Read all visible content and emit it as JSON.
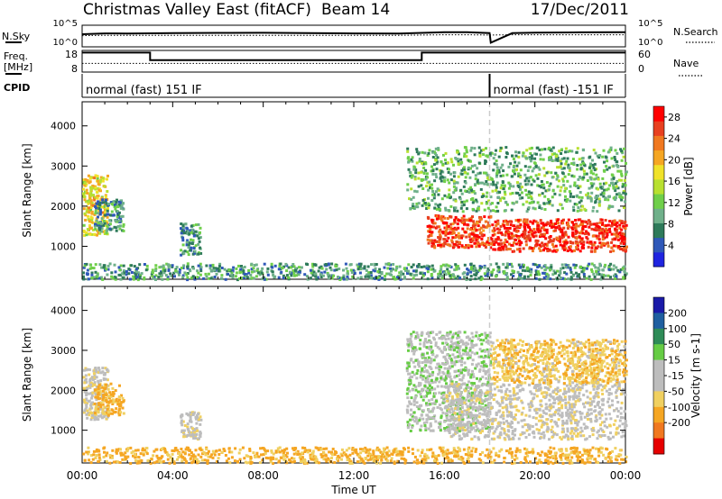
{
  "header": {
    "title": "Christmas Valley East (fitACF)",
    "beam": "Beam 14",
    "date": "17/Dec/2011"
  },
  "strip_labels": {
    "nsky": "N.Sky",
    "nsearch": "N.Search",
    "freq_line1": "Freq.",
    "freq_line2": "[MHz]",
    "nave": "Nave",
    "cpid": "CPID",
    "noise_top": "10^5",
    "noise_bottom": "10^0",
    "freq_top": "18",
    "freq_bottom": "8",
    "nave_top": "60",
    "nave_bottom": "0"
  },
  "cpid_segments": [
    {
      "label": "normal (fast) 151 IF",
      "start_hour": 0,
      "end_hour": 18
    },
    {
      "label": "normal (fast) -151 IF",
      "start_hour": 18,
      "end_hour": 24
    }
  ],
  "colors": {
    "power": [
      "#1f24e0",
      "#2f58b8",
      "#2e7a5a",
      "#6fb08a",
      "#6fcf4a",
      "#b8e030",
      "#f0e22a",
      "#f5a623",
      "#f07820",
      "#e84020",
      "#ff0000"
    ],
    "velocity": [
      "#e60000",
      "#f07820",
      "#f5a623",
      "#f0d060",
      "#bdbdbd",
      "#bdbdbd",
      "#66cc44",
      "#2e8b57",
      "#1f5fa0",
      "#1a1aa8"
    ]
  },
  "chart_data": [
    {
      "type": "line",
      "title": "N.Sky / N.Search",
      "yscale": "log",
      "ylim": [
        1,
        100000
      ],
      "x": [
        0,
        1,
        2,
        4,
        6,
        8,
        10,
        12,
        14,
        15,
        16,
        17,
        18,
        18.05,
        19,
        20,
        22,
        24
      ],
      "series": [
        {
          "name": "N.Sky",
          "values": [
            1000,
            2000,
            2000,
            2000,
            2000,
            2000,
            2000,
            2000,
            2000,
            2500,
            3000,
            3000,
            2000,
            5,
            2500,
            3000,
            3000,
            3000
          ]
        },
        {
          "name": "N.Search",
          "values": [
            400,
            500,
            500,
            500,
            500,
            500,
            500,
            500,
            500,
            600,
            700,
            700,
            600,
            600,
            700,
            700,
            700,
            700
          ]
        }
      ]
    },
    {
      "type": "line",
      "title": "Freq. [MHz] / Nave",
      "ylim": [
        8,
        18
      ],
      "x": [
        0,
        3,
        3,
        15,
        15,
        18,
        18.05,
        24
      ],
      "series": [
        {
          "name": "Freq.",
          "values": [
            17,
            17,
            13.5,
            13.5,
            17,
            17,
            17,
            17
          ]
        },
        {
          "name": "Nave",
          "values": [
            12,
            12,
            12,
            12,
            12,
            12,
            12,
            12
          ]
        }
      ]
    },
    {
      "type": "heatmap",
      "ylabel": "Slant Range [km]",
      "xlim": [
        0,
        24
      ],
      "ylim": [
        180,
        4600
      ],
      "x_ticks": [
        "00:00",
        "04:00",
        "08:00",
        "12:00",
        "16:00",
        "20:00",
        "00:00"
      ],
      "y_ticks": [
        1000,
        2000,
        3000,
        4000
      ],
      "colorbar": {
        "label": "Power [dB]",
        "ticks": [
          4,
          8,
          12,
          16,
          20,
          24,
          28
        ],
        "range": [
          0,
          30
        ]
      },
      "echo_regions": [
        {
          "t0": 0.0,
          "t1": 1.1,
          "r0": 1300,
          "r1": 2800,
          "level": 18
        },
        {
          "t0": 0.5,
          "t1": 1.8,
          "r0": 1400,
          "r1": 2200,
          "level": 7
        },
        {
          "t0": 4.3,
          "t1": 5.2,
          "r0": 800,
          "r1": 1600,
          "level": 7
        },
        {
          "t0": 0.0,
          "t1": 24.0,
          "r0": 200,
          "r1": 600,
          "level": 8
        },
        {
          "t0": 14.3,
          "t1": 24.0,
          "r0": 1900,
          "r1": 3500,
          "level": 10
        },
        {
          "t0": 15.2,
          "t1": 18.0,
          "r0": 1000,
          "r1": 1800,
          "level": 27
        },
        {
          "t0": 18.0,
          "t1": 24.0,
          "r0": 900,
          "r1": 1700,
          "level": 28
        }
      ]
    },
    {
      "type": "heatmap",
      "ylabel": "Slant Range [km]",
      "xlabel": "Time UT",
      "xlim": [
        0,
        24
      ],
      "ylim": [
        180,
        4600
      ],
      "x_ticks": [
        "00:00",
        "04:00",
        "08:00",
        "12:00",
        "16:00",
        "20:00",
        "00:00"
      ],
      "y_ticks": [
        1000,
        2000,
        3000,
        4000
      ],
      "colorbar": {
        "label": "Velocity [m s-1]",
        "ticks": [
          200,
          100,
          50,
          15,
          -15,
          -50,
          -100,
          -200
        ]
      },
      "echo_regions": [
        {
          "t0": 0.0,
          "t1": 1.1,
          "r0": 1300,
          "r1": 2600,
          "velocity": 0
        },
        {
          "t0": 0.5,
          "t1": 1.8,
          "r0": 1400,
          "r1": 2200,
          "velocity": -60
        },
        {
          "t0": 4.3,
          "t1": 5.2,
          "r0": 800,
          "r1": 1500,
          "velocity": 0
        },
        {
          "t0": 0.0,
          "t1": 24.0,
          "r0": 200,
          "r1": 600,
          "velocity": -60
        },
        {
          "t0": 14.3,
          "t1": 18.0,
          "r0": 1000,
          "r1": 3500,
          "velocity": 40
        },
        {
          "t0": 16.0,
          "t1": 24.0,
          "r0": 800,
          "r1": 2200,
          "velocity": 0
        },
        {
          "t0": 18.0,
          "t1": 24.0,
          "r0": 2200,
          "r1": 3300,
          "velocity": -40
        }
      ]
    }
  ]
}
